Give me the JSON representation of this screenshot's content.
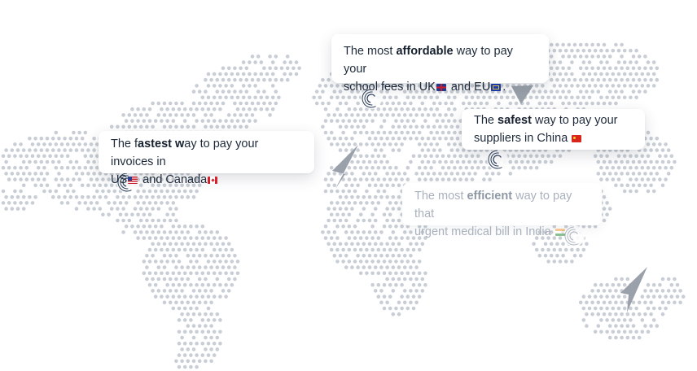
{
  "colors": {
    "map_dot": "#c9ced6",
    "marker_ring": "#2c3e5a",
    "pointer": "#9aa1ab",
    "text": "#1e2a3a",
    "faded_text": "#a9b1bd"
  },
  "callouts": {
    "uk": {
      "line1_pre": "The most ",
      "line1_bold": "affordable",
      "line1_post": " way to pay your",
      "line2_pre": "school fees in UK",
      "line2_mid": " and EU",
      "line2_post": "."
    },
    "us": {
      "line1_pre": "The f",
      "line1_bold": "astest w",
      "line1_post": "ay to pay your invoices in",
      "line2_pre": "US",
      "line2_mid": " and Canada",
      "line2_post": ""
    },
    "china": {
      "line1_pre": "The ",
      "line1_bold": "safest",
      "line1_post": " way to pay your",
      "line2_pre": "suppliers in China ",
      "line2_post": ""
    },
    "india": {
      "line1_pre": "The most ",
      "line1_bold": "efficient",
      "line1_post": " way to pay that",
      "line2_pre": "urgent medical bill in India ",
      "line2_post": ""
    }
  },
  "flags": {
    "uk": "flag-uk-icon",
    "eu": "flag-eu-icon",
    "us": "flag-us-icon",
    "canada": "flag-canada-icon",
    "china": "flag-china-icon",
    "india": "flag-india-icon"
  }
}
